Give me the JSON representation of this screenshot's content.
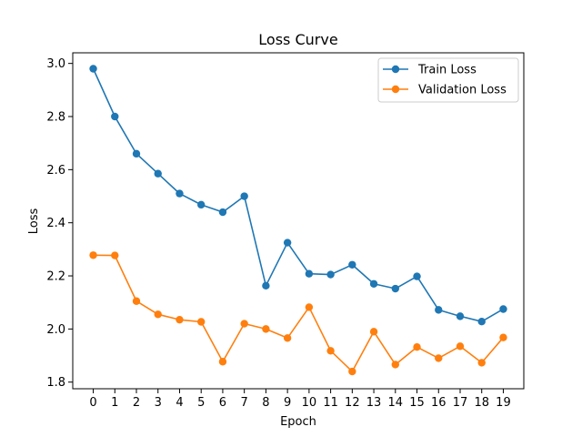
{
  "chart_data": {
    "type": "line",
    "title": "Loss Curve",
    "xlabel": "Epoch",
    "ylabel": "Loss",
    "x": [
      0,
      1,
      2,
      3,
      4,
      5,
      6,
      7,
      8,
      9,
      10,
      11,
      12,
      13,
      14,
      15,
      16,
      17,
      18,
      19
    ],
    "xlim": [
      -0.95,
      19.95
    ],
    "ylim": [
      1.775,
      3.04
    ],
    "yticks": [
      1.8,
      2.0,
      2.2,
      2.4,
      2.6,
      2.8,
      3.0
    ],
    "grid": false,
    "legend_position": "top-right",
    "series": [
      {
        "name": "Train Loss",
        "color": "#1f77b4",
        "marker": "circle",
        "values": [
          2.98,
          2.8,
          2.66,
          2.585,
          2.51,
          2.468,
          2.44,
          2.5,
          2.163,
          2.325,
          2.208,
          2.205,
          2.242,
          2.17,
          2.152,
          2.198,
          2.072,
          2.048,
          2.028,
          2.075
        ]
      },
      {
        "name": "Validation Loss",
        "color": "#ff7f0e",
        "marker": "circle",
        "values": [
          2.278,
          2.277,
          2.105,
          2.055,
          2.035,
          2.027,
          1.877,
          2.02,
          2.0,
          1.966,
          2.082,
          1.918,
          1.84,
          1.99,
          1.866,
          1.932,
          1.89,
          1.935,
          1.873,
          1.968
        ]
      }
    ]
  }
}
